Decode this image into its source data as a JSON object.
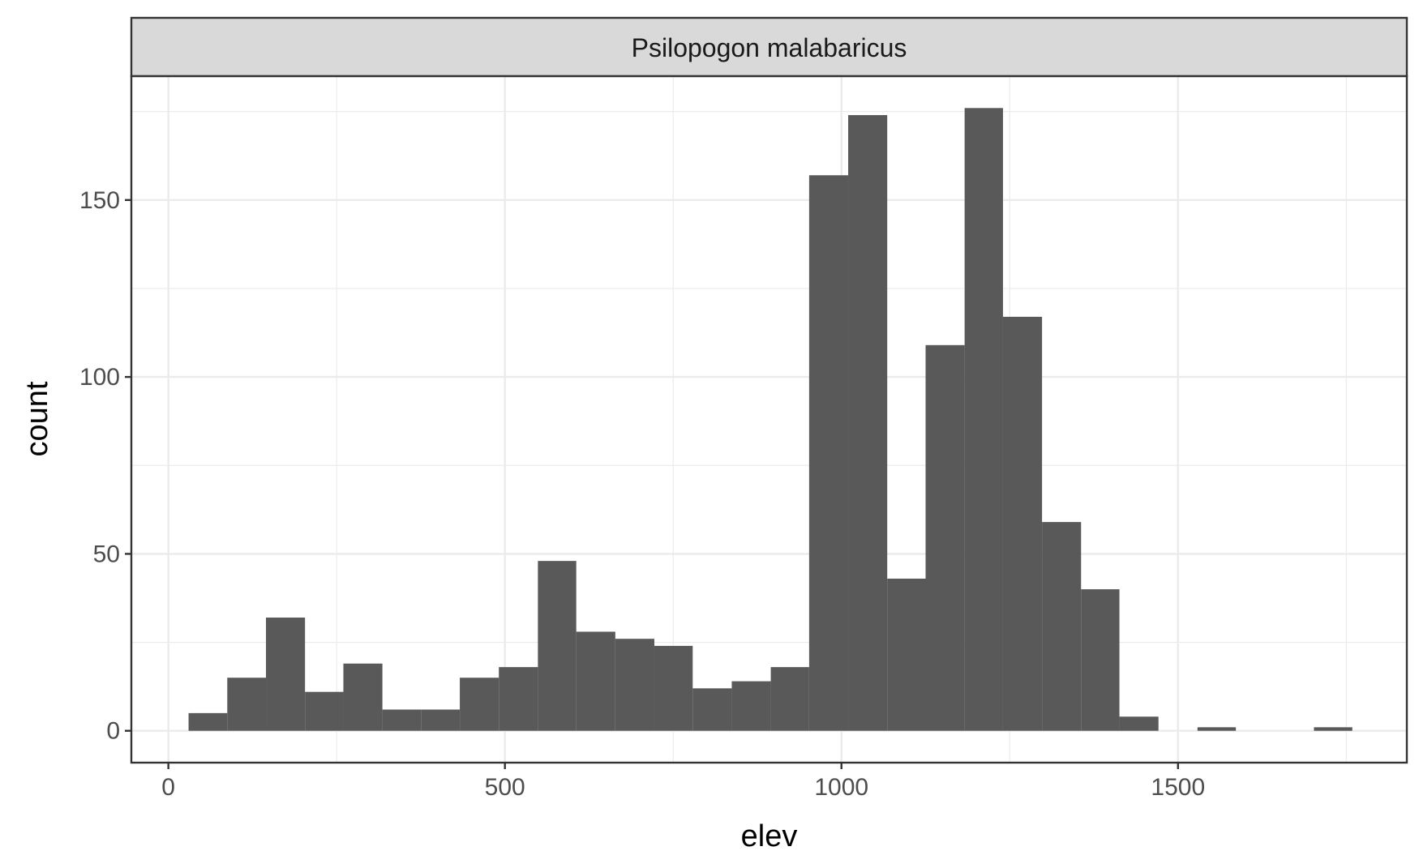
{
  "chart_data": {
    "type": "bar",
    "facet_label": "Psilopogon malabaricus",
    "xlabel": "elev",
    "ylabel": "count",
    "xlim": [
      -55,
      1840
    ],
    "ylim": [
      -9,
      185
    ],
    "x_ticks": [
      0,
      500,
      1000,
      1500
    ],
    "y_ticks": [
      0,
      50,
      100,
      150
    ],
    "x_tick_labels": [
      "0",
      "500",
      "1000",
      "1500"
    ],
    "y_tick_labels": [
      "0",
      "50",
      "100",
      "150"
    ],
    "grid": true,
    "bar_color": "#595959",
    "bins": [
      {
        "x0": 30,
        "x1": 87.5,
        "count": 5
      },
      {
        "x0": 87.5,
        "x1": 145,
        "count": 15
      },
      {
        "x0": 145,
        "x1": 203,
        "count": 32
      },
      {
        "x0": 203,
        "x1": 260,
        "count": 11
      },
      {
        "x0": 260,
        "x1": 318,
        "count": 19
      },
      {
        "x0": 318,
        "x1": 376,
        "count": 6
      },
      {
        "x0": 376,
        "x1": 433,
        "count": 6
      },
      {
        "x0": 433,
        "x1": 491,
        "count": 15
      },
      {
        "x0": 491,
        "x1": 549,
        "count": 18
      },
      {
        "x0": 549,
        "x1": 606,
        "count": 48
      },
      {
        "x0": 606,
        "x1": 664,
        "count": 28
      },
      {
        "x0": 664,
        "x1": 722,
        "count": 26
      },
      {
        "x0": 722,
        "x1": 779,
        "count": 24
      },
      {
        "x0": 779,
        "x1": 837,
        "count": 12
      },
      {
        "x0": 837,
        "x1": 895,
        "count": 14
      },
      {
        "x0": 895,
        "x1": 952,
        "count": 18
      },
      {
        "x0": 952,
        "x1": 1010,
        "count": 157
      },
      {
        "x0": 1010,
        "x1": 1068,
        "count": 174
      },
      {
        "x0": 1068,
        "x1": 1125,
        "count": 43
      },
      {
        "x0": 1125,
        "x1": 1183,
        "count": 109
      },
      {
        "x0": 1183,
        "x1": 1240,
        "count": 176
      },
      {
        "x0": 1240,
        "x1": 1298,
        "count": 117
      },
      {
        "x0": 1298,
        "x1": 1356,
        "count": 59
      },
      {
        "x0": 1356,
        "x1": 1413,
        "count": 40
      },
      {
        "x0": 1413,
        "x1": 1471,
        "count": 4
      },
      {
        "x0": 1471,
        "x1": 1529,
        "count": 0
      },
      {
        "x0": 1529,
        "x1": 1586,
        "count": 1
      },
      {
        "x0": 1586,
        "x1": 1644,
        "count": 0
      },
      {
        "x0": 1644,
        "x1": 1702,
        "count": 0
      },
      {
        "x0": 1702,
        "x1": 1759,
        "count": 1
      }
    ]
  }
}
